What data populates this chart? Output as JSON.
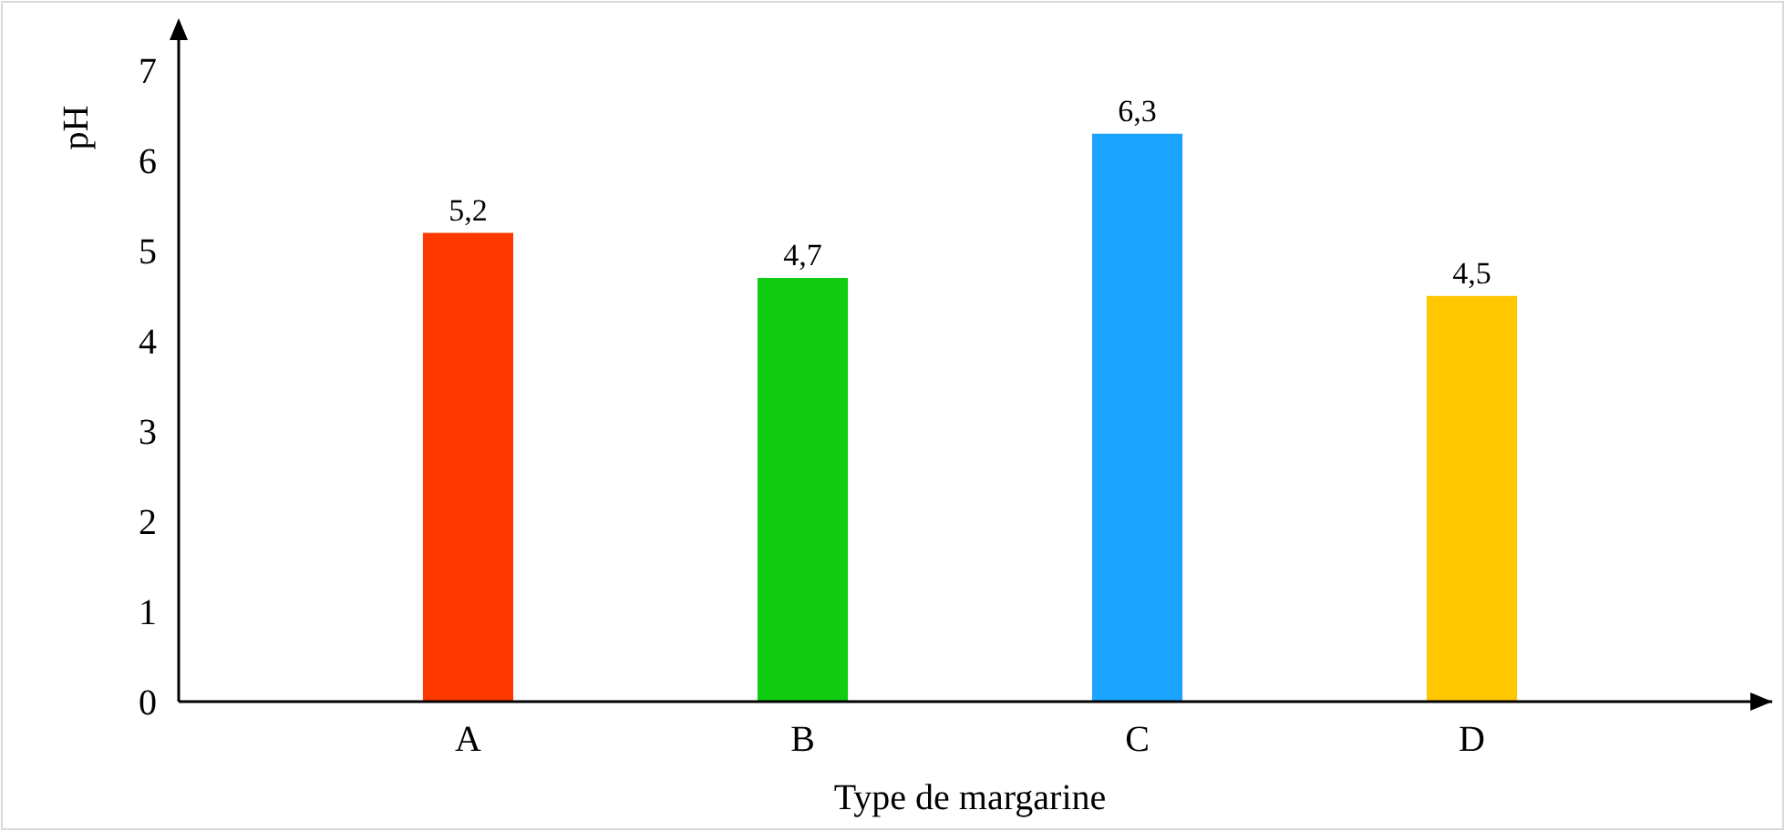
{
  "chart_data": {
    "type": "bar",
    "xlabel": "Type de margarine",
    "ylabel": "pH",
    "categories": [
      "A",
      "B",
      "C",
      "D"
    ],
    "values": [
      5.2,
      4.7,
      6.3,
      4.5
    ],
    "colors": [
      "#ff3a00",
      "#11cc11",
      "#1aa3ff",
      "#ffc700"
    ],
    "value_labels": [
      "5,2",
      "4,7",
      "6,3",
      "4,5"
    ],
    "ylim": [
      0,
      7.5
    ],
    "yticks": [
      0,
      1,
      2,
      3,
      4,
      5,
      6,
      7
    ],
    "grid": false
  }
}
